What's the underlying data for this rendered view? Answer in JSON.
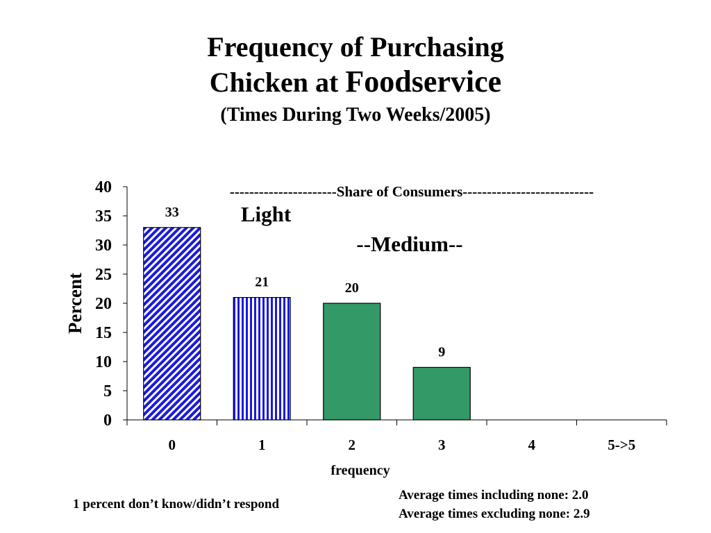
{
  "title": {
    "line1": "Frequency of Purchasing",
    "line2a": "Chicken at ",
    "line2b": "Foodservice",
    "line3": "(Times During Two Weeks/2005)"
  },
  "chart_data": {
    "type": "bar",
    "categories": [
      "0",
      "1",
      "2",
      "3",
      "4",
      "5->5"
    ],
    "values": [
      33,
      21,
      20,
      9,
      null,
      null
    ],
    "data_labels": [
      "33",
      "21",
      "20",
      "9",
      "",
      ""
    ],
    "bar_styles": [
      "diagonal-hatch-blue",
      "vertical-stripe-blue",
      "solid-green",
      "solid-green",
      "none",
      "none"
    ],
    "xlabel": "frequency",
    "ylabel": "Percent",
    "ylim": [
      0,
      40
    ],
    "yticks": [
      0,
      5,
      10,
      15,
      20,
      25,
      30,
      35,
      40
    ],
    "grid": false,
    "annotations": {
      "share": "----------------------Share of Consumers---------------------------",
      "light": "Light",
      "medium": "--Medium--"
    }
  },
  "colors": {
    "blue": "#1a1adc",
    "green": "#339966",
    "outline": "#000000"
  },
  "notes": {
    "left": "1 percent don’t know/didn’t respond",
    "right1": "Average times including none:  2.0",
    "right2": "Average times excluding none:  2.9"
  }
}
